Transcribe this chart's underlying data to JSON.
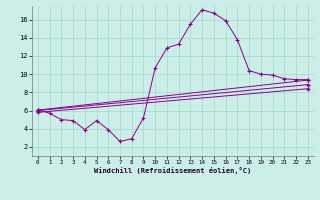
{
  "main_x": [
    0,
    1,
    2,
    3,
    4,
    5,
    6,
    7,
    8,
    9,
    10,
    11,
    12,
    13,
    14,
    15,
    16,
    17,
    18,
    19,
    20,
    21,
    22,
    23
  ],
  "main_y": [
    6.1,
    5.7,
    5.0,
    4.9,
    3.9,
    4.9,
    3.9,
    2.6,
    2.9,
    5.2,
    10.7,
    12.9,
    13.3,
    15.5,
    17.1,
    16.7,
    15.9,
    13.8,
    10.4,
    10.0,
    9.9,
    9.5,
    9.4,
    9.4
  ],
  "line1_x": [
    0,
    23
  ],
  "line1_y": [
    6.05,
    9.35
  ],
  "line2_x": [
    0,
    23
  ],
  "line2_y": [
    6.0,
    8.85
  ],
  "line3_x": [
    0,
    23
  ],
  "line3_y": [
    5.8,
    8.4
  ],
  "line_color": "#880088",
  "bg_color": "#cceee8",
  "grid_color": "#aaddcc",
  "xlim": [
    -0.5,
    23.5
  ],
  "ylim": [
    1.0,
    17.5
  ],
  "yticks": [
    2,
    4,
    6,
    8,
    10,
    12,
    14,
    16
  ],
  "xticks": [
    0,
    1,
    2,
    3,
    4,
    5,
    6,
    7,
    8,
    9,
    10,
    11,
    12,
    13,
    14,
    15,
    16,
    17,
    18,
    19,
    20,
    21,
    22,
    23
  ],
  "xlabel": "Windchill (Refroidissement éolien,°C)"
}
